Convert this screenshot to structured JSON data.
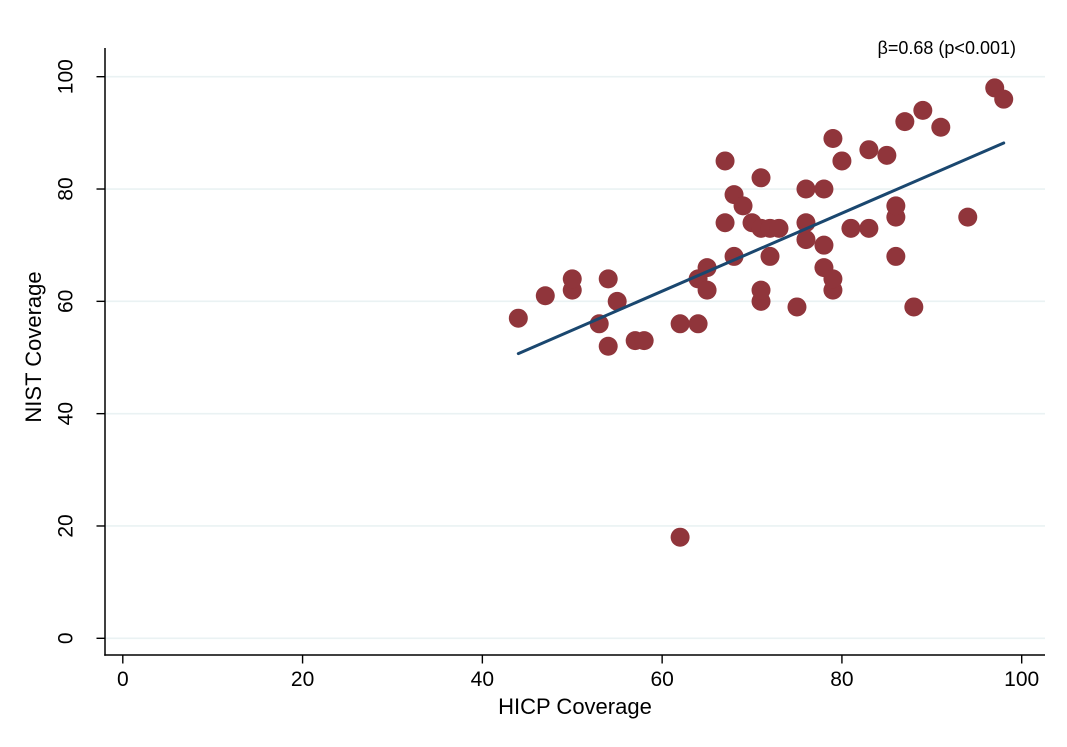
{
  "chart_data": {
    "type": "scatter",
    "title": "",
    "xlabel": "HICP Coverage",
    "ylabel": "NIST Coverage",
    "annotation": "β=0.68 (p<0.001)",
    "xlim": [
      0,
      100
    ],
    "ylim": [
      0,
      100
    ],
    "x_ticks": [
      0,
      20,
      40,
      60,
      80,
      100
    ],
    "y_ticks": [
      0,
      20,
      40,
      60,
      80,
      100
    ],
    "grid": "horizontal",
    "legend": "none",
    "points": [
      [
        44,
        57
      ],
      [
        47,
        61
      ],
      [
        50,
        62
      ],
      [
        50,
        64
      ],
      [
        53,
        56
      ],
      [
        54,
        52
      ],
      [
        54,
        64
      ],
      [
        55,
        60
      ],
      [
        57,
        53
      ],
      [
        58,
        53
      ],
      [
        62,
        18
      ],
      [
        62,
        56
      ],
      [
        64,
        56
      ],
      [
        64,
        64
      ],
      [
        65,
        62
      ],
      [
        65,
        66
      ],
      [
        67,
        74
      ],
      [
        67,
        85
      ],
      [
        68,
        68
      ],
      [
        68,
        79
      ],
      [
        69,
        77
      ],
      [
        70,
        74
      ],
      [
        71,
        60
      ],
      [
        71,
        62
      ],
      [
        71,
        73
      ],
      [
        71,
        82
      ],
      [
        72,
        68
      ],
      [
        72,
        73
      ],
      [
        73,
        73
      ],
      [
        75,
        59
      ],
      [
        76,
        71
      ],
      [
        76,
        74
      ],
      [
        76,
        80
      ],
      [
        78,
        66
      ],
      [
        78,
        70
      ],
      [
        78,
        80
      ],
      [
        79,
        62
      ],
      [
        79,
        64
      ],
      [
        79,
        89
      ],
      [
        80,
        85
      ],
      [
        81,
        73
      ],
      [
        83,
        73
      ],
      [
        83,
        87
      ],
      [
        85,
        86
      ],
      [
        86,
        68
      ],
      [
        86,
        75
      ],
      [
        86,
        77
      ],
      [
        87,
        92
      ],
      [
        88,
        59
      ],
      [
        89,
        94
      ],
      [
        91,
        91
      ],
      [
        94,
        75
      ],
      [
        97,
        98
      ],
      [
        98,
        96
      ]
    ],
    "fit_line": {
      "x1": 44,
      "y1": 50.7,
      "x2": 98,
      "y2": 88.2,
      "beta": 0.68,
      "p": "<0.001"
    },
    "colors": {
      "marker": "#90353B",
      "fit_line": "#1A476F",
      "gridline": "#EAF2F3",
      "axis": "#000000",
      "background": "#FFFFFF"
    }
  }
}
